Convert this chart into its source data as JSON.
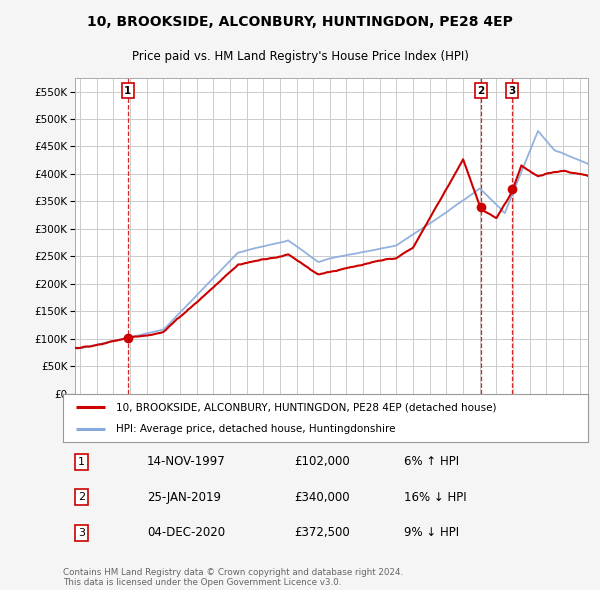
{
  "title": "10, BROOKSIDE, ALCONBURY, HUNTINGDON, PE28 4EP",
  "subtitle": "Price paid vs. HM Land Registry's House Price Index (HPI)",
  "ylabel_ticks": [
    "£0",
    "£50K",
    "£100K",
    "£150K",
    "£200K",
    "£250K",
    "£300K",
    "£350K",
    "£400K",
    "£450K",
    "£500K",
    "£550K"
  ],
  "ytick_values": [
    0,
    50000,
    100000,
    150000,
    200000,
    250000,
    300000,
    350000,
    400000,
    450000,
    500000,
    550000
  ],
  "ylim": [
    0,
    575000
  ],
  "sale_prices": [
    102000,
    340000,
    372500
  ],
  "sale_labels": [
    "1",
    "2",
    "3"
  ],
  "sale_times": [
    1997.878,
    2019.069,
    2020.921
  ],
  "vline_color": "#cc0000",
  "sale_dot_color": "#cc0000",
  "prop_line_color": "#cc0000",
  "hpi_line_color": "#88aadd",
  "background_color": "#f5f5f5",
  "plot_bg_color": "#ffffff",
  "grid_color": "#cccccc",
  "legend1": "10, BROOKSIDE, ALCONBURY, HUNTINGDON, PE28 4EP (detached house)",
  "legend2": "HPI: Average price, detached house, Huntingdonshire",
  "table_rows": [
    [
      "1",
      "14-NOV-1997",
      "£102,000",
      "6% ↑ HPI"
    ],
    [
      "2",
      "25-JAN-2019",
      "£340,000",
      "16% ↓ HPI"
    ],
    [
      "3",
      "04-DEC-2020",
      "£372,500",
      "9% ↓ HPI"
    ]
  ],
  "footnote": "Contains HM Land Registry data © Crown copyright and database right 2024.\nThis data is licensed under the Open Government Licence v3.0.",
  "xstart": 1994.7,
  "xend": 2025.5
}
